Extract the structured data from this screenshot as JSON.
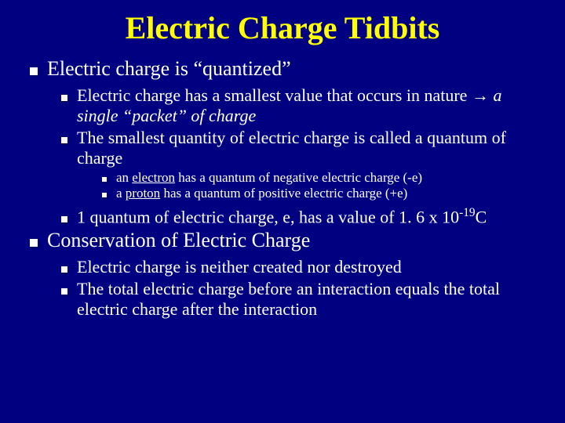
{
  "colors": {
    "background": "#000080",
    "title": "#ffff00",
    "text": "#ffffff",
    "bullet": "#ffffff"
  },
  "typography": {
    "title_fontsize": 40,
    "lvl1_fontsize": 26,
    "lvl2_fontsize": 22,
    "lvl3_fontsize": 17,
    "font_family": "Times New Roman"
  },
  "title": "Electric Charge Tidbits",
  "lvl1_a": "Electric charge is “quantized”",
  "lvl2_a1_part1": "Electric charge has a smallest value that occurs in nature → ",
  "lvl2_a1_part2_italic": "a single “packet” of charge",
  "lvl2_a2": "The smallest quantity of electric charge is called a quantum of charge",
  "lvl3_a2a_pre": "an ",
  "lvl3_a2a_u": "electron",
  "lvl3_a2a_post": " has a quantum of negative electric charge (-e)",
  "lvl3_a2b_pre": "a ",
  "lvl3_a2b_u": "proton",
  "lvl3_a2b_post": " has a quantum of positive electric charge (+e)",
  "lvl2_a3_pre": "1 quantum of electric charge, e, has a value of 1. 6 x 10",
  "lvl2_a3_sup": "-19",
  "lvl2_a3_post": "C",
  "lvl1_b": "Conservation of Electric Charge",
  "lvl2_b1": "Electric charge is neither created nor destroyed",
  "lvl2_b2": "The total electric charge before an interaction equals the total electric charge after the interaction"
}
